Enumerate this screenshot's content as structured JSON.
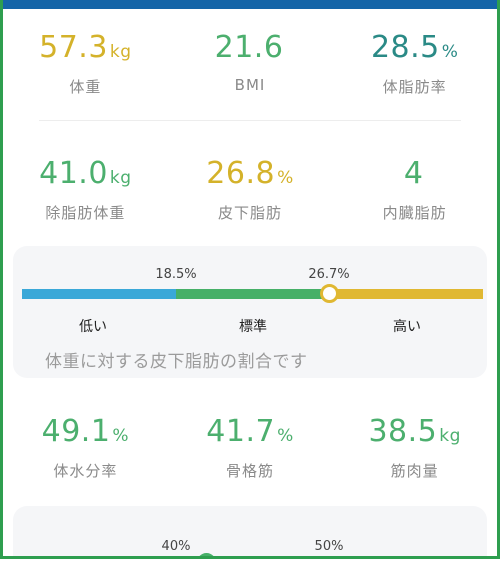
{
  "metrics_row1": [
    {
      "value": "57.3",
      "unit": "kg",
      "label": "体重",
      "color": "#d4b22a"
    },
    {
      "value": "21.6",
      "unit": "",
      "label": "BMI",
      "color": "#4caf6e"
    },
    {
      "value": "28.5",
      "unit": "%",
      "label": "体脂肪率",
      "color": "#2a8a86"
    }
  ],
  "metrics_row2": [
    {
      "value": "41.0",
      "unit": "kg",
      "label": "除脂肪体重",
      "color": "#4caf6e"
    },
    {
      "value": "26.8",
      "unit": "%",
      "label": "皮下脂肪",
      "color": "#d4b22a"
    },
    {
      "value": "4",
      "unit": "",
      "label": "内臓脂肪",
      "color": "#4caf6e"
    }
  ],
  "metrics_row3": [
    {
      "value": "49.1",
      "unit": "%",
      "label": "体水分率",
      "color": "#4caf6e"
    },
    {
      "value": "41.7",
      "unit": "%",
      "label": "骨格筋",
      "color": "#4caf6e"
    },
    {
      "value": "38.5",
      "unit": "kg",
      "label": "筋肉量",
      "color": "#4caf6e"
    }
  ],
  "subcutaneous_card": {
    "threshold_low": "18.5%",
    "threshold_high": "26.7%",
    "zones": [
      "低い",
      "標準",
      "高い"
    ],
    "zone_colors": [
      "#3aa8d8",
      "#46b068",
      "#e0b832"
    ],
    "description": "体重に対する皮下脂肪の割合です",
    "marker_level_percent": 26.8
  },
  "next_card": {
    "threshold_low": "40%",
    "threshold_high": "50%"
  },
  "colors": {
    "frame": "#2e9e4f",
    "top_bar": "#1565a8"
  }
}
